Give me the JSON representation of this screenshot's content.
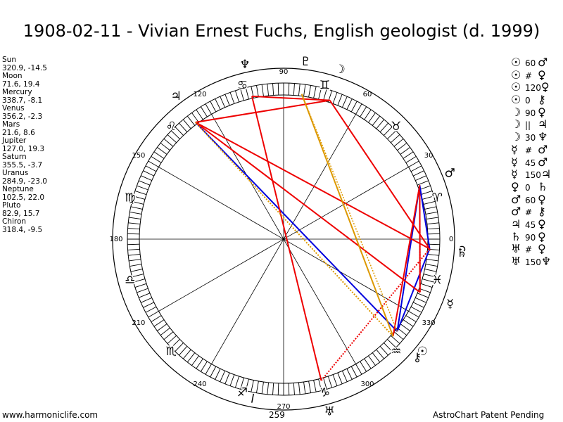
{
  "title": "1908-02-11 - Vivian Ernest Fuchs, English geologist (d. 1999)",
  "planets": [
    {
      "name": "Sun",
      "coords": "320.9, -14.5",
      "glyph": "☉",
      "lon": 320.9
    },
    {
      "name": "Moon",
      "coords": "71.6, 19.4",
      "glyph": "☽",
      "lon": 71.6
    },
    {
      "name": "Mercury",
      "coords": "338.7, -8.1",
      "glyph": "☿",
      "lon": 338.7
    },
    {
      "name": "Venus",
      "coords": "356.2, -2.3",
      "glyph": "♀",
      "lon": 356.2
    },
    {
      "name": "Mars",
      "coords": "21.6, 8.6",
      "glyph": "♂",
      "lon": 21.6
    },
    {
      "name": "Jupiter",
      "coords": "127.0, 19.3",
      "glyph": "♃",
      "lon": 127.0
    },
    {
      "name": "Saturn",
      "coords": "355.5, -3.7",
      "glyph": "♄",
      "lon": 355.5
    },
    {
      "name": "Uranus",
      "coords": "284.9, -23.0",
      "glyph": "♅",
      "lon": 284.9
    },
    {
      "name": "Neptune",
      "coords": "102.5, 22.0",
      "glyph": "♆",
      "lon": 102.5
    },
    {
      "name": "Pluto",
      "coords": "82.9, 15.7",
      "glyph": "♇",
      "lon": 82.9
    },
    {
      "name": "Chiron",
      "coords": "318.4, -9.5",
      "glyph": "⚷",
      "lon": 318.4
    }
  ],
  "aspects": [
    {
      "p1": "☉",
      "angle": "60",
      "p2": "♂"
    },
    {
      "p1": "☉",
      "angle": "#",
      "p2": "♀"
    },
    {
      "p1": "☉",
      "angle": "120",
      "p2": "♀"
    },
    {
      "p1": "☉",
      "angle": "0",
      "p2": "⚷"
    },
    {
      "p1": "☽",
      "angle": "90",
      "p2": "♀"
    },
    {
      "p1": "☽",
      "angle": "||",
      "p2": "♃"
    },
    {
      "p1": "☽",
      "angle": "30",
      "p2": "♆"
    },
    {
      "p1": "☿",
      "angle": "#",
      "p2": "♂"
    },
    {
      "p1": "☿",
      "angle": "45",
      "p2": "♂"
    },
    {
      "p1": "☿",
      "angle": "150",
      "p2": "♃"
    },
    {
      "p1": "♀",
      "angle": "0",
      "p2": "♄"
    },
    {
      "p1": "♂",
      "angle": "60",
      "p2": "♀"
    },
    {
      "p1": "♂",
      "angle": "#",
      "p2": "⚷"
    },
    {
      "p1": "♃",
      "angle": "45",
      "p2": "♀"
    },
    {
      "p1": "♄",
      "angle": "90",
      "p2": "♀"
    },
    {
      "p1": "♅",
      "angle": "#",
      "p2": "♀"
    },
    {
      "p1": "♅",
      "angle": "150",
      "p2": "♆"
    }
  ],
  "degree_labels": [
    "0",
    "30",
    "60",
    "90",
    "120",
    "150",
    "180",
    "210",
    "240",
    "270",
    "300",
    "330"
  ],
  "zodiac_signs": [
    "♈",
    "♉",
    "♊",
    "♋",
    "♌",
    "♍",
    "♎",
    "♏",
    "♐",
    "♑",
    "♒",
    "♓"
  ],
  "chart_data": {
    "type": "astrological-wheel",
    "planet_longitudes": {
      "Sun": 320.9,
      "Moon": 71.6,
      "Mercury": 338.7,
      "Venus": 356.2,
      "Mars": 21.6,
      "Jupiter": 127.0,
      "Saturn": 355.5,
      "Uranus": 284.9,
      "Neptune": 102.5,
      "Pluto": 82.9,
      "Chiron": 318.4
    },
    "marker_value": "259",
    "marker_longitude": 259
  },
  "colors": {
    "red": "#ee0000",
    "blue": "#0000dd",
    "orange": "#dd9900"
  },
  "footer": {
    "left": "www.harmoniclife.com",
    "right": "AstroChart Patent Pending",
    "mid": "259"
  }
}
